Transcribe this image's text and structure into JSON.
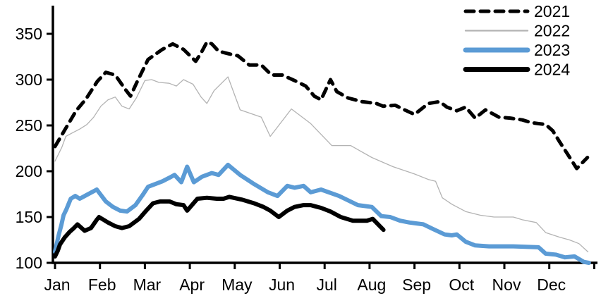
{
  "chart_data": {
    "type": "line",
    "title": "",
    "xlabel": "",
    "ylabel": "",
    "x_axis": {
      "labels": [
        "Jan",
        "Feb",
        "Mar",
        "Apr",
        "May",
        "Jun",
        "Jul",
        "Aug",
        "Sep",
        "Oct",
        "Nov",
        "Dec"
      ],
      "range_months": [
        0,
        12
      ]
    },
    "y_axis": {
      "ticks": [
        "100",
        "150",
        "200",
        "250",
        "300",
        "350"
      ],
      "tick_values": [
        100,
        150,
        200,
        250,
        300,
        350
      ],
      "range": [
        100,
        360
      ],
      "grid": false
    },
    "legend": {
      "position": "top-right",
      "entries": [
        "2021",
        "2022",
        "2023",
        "2024"
      ]
    },
    "colors": {
      "series_2021": "#000000",
      "series_2022": "#b3b3b3",
      "series_2023": "#5B9BD5",
      "series_2024": "#000000"
    },
    "series": [
      {
        "name": "2021",
        "color": "#000000",
        "style": "dashed",
        "width": 5,
        "points": [
          [
            0.0,
            227
          ],
          [
            0.24,
            247
          ],
          [
            0.47,
            266
          ],
          [
            0.69,
            279
          ],
          [
            0.94,
            298
          ],
          [
            1.13,
            308
          ],
          [
            1.34,
            305
          ],
          [
            1.57,
            289
          ],
          [
            1.68,
            282
          ],
          [
            1.84,
            299
          ],
          [
            2.07,
            322
          ],
          [
            2.39,
            333
          ],
          [
            2.62,
            339
          ],
          [
            2.86,
            333
          ],
          [
            3.13,
            320
          ],
          [
            3.25,
            329
          ],
          [
            3.38,
            341
          ],
          [
            3.49,
            339
          ],
          [
            3.64,
            331
          ],
          [
            3.88,
            328
          ],
          [
            4.07,
            326
          ],
          [
            4.32,
            316
          ],
          [
            4.59,
            316
          ],
          [
            4.82,
            305
          ],
          [
            5.06,
            305
          ],
          [
            5.33,
            299
          ],
          [
            5.58,
            293
          ],
          [
            5.77,
            282
          ],
          [
            5.92,
            278
          ],
          [
            6.13,
            300
          ],
          [
            6.27,
            287
          ],
          [
            6.52,
            280
          ],
          [
            6.83,
            276
          ],
          [
            7.15,
            274
          ],
          [
            7.3,
            271
          ],
          [
            7.57,
            272
          ],
          [
            7.78,
            267
          ],
          [
            8.0,
            262
          ],
          [
            8.31,
            274
          ],
          [
            8.56,
            276
          ],
          [
            8.72,
            270
          ],
          [
            8.94,
            266
          ],
          [
            9.14,
            270
          ],
          [
            9.35,
            258
          ],
          [
            9.58,
            267
          ],
          [
            9.88,
            259
          ],
          [
            10.13,
            258
          ],
          [
            10.4,
            256
          ],
          [
            10.6,
            253
          ],
          [
            10.92,
            251
          ],
          [
            11.08,
            244
          ],
          [
            11.23,
            232
          ],
          [
            11.39,
            220
          ],
          [
            11.61,
            203
          ],
          [
            11.85,
            215
          ]
        ]
      },
      {
        "name": "2022",
        "color": "#b3b3b3",
        "style": "solid",
        "width": 1.3,
        "points": [
          [
            0.0,
            211
          ],
          [
            0.15,
            226
          ],
          [
            0.24,
            238
          ],
          [
            0.39,
            242
          ],
          [
            0.55,
            246
          ],
          [
            0.71,
            251
          ],
          [
            0.86,
            259
          ],
          [
            1.02,
            271
          ],
          [
            1.18,
            278
          ],
          [
            1.34,
            281
          ],
          [
            1.49,
            271
          ],
          [
            1.65,
            268
          ],
          [
            1.81,
            280
          ],
          [
            1.92,
            291
          ],
          [
            2.0,
            299
          ],
          [
            2.15,
            300
          ],
          [
            2.31,
            297
          ],
          [
            2.54,
            296
          ],
          [
            2.7,
            293
          ],
          [
            2.86,
            300
          ],
          [
            3.07,
            295
          ],
          [
            3.25,
            281
          ],
          [
            3.38,
            274
          ],
          [
            3.54,
            288
          ],
          [
            3.85,
            303
          ],
          [
            4.12,
            267
          ],
          [
            4.59,
            259
          ],
          [
            4.79,
            238
          ],
          [
            5.26,
            268
          ],
          [
            5.69,
            252
          ],
          [
            6.16,
            228
          ],
          [
            6.58,
            228
          ],
          [
            7.05,
            215
          ],
          [
            7.52,
            205
          ],
          [
            8.0,
            197
          ],
          [
            8.31,
            191
          ],
          [
            8.47,
            189
          ],
          [
            8.62,
            171
          ],
          [
            8.83,
            164
          ],
          [
            9.14,
            156
          ],
          [
            9.46,
            152
          ],
          [
            9.77,
            150
          ],
          [
            10.2,
            150
          ],
          [
            10.4,
            147
          ],
          [
            10.71,
            144
          ],
          [
            10.92,
            133
          ],
          [
            11.23,
            128
          ],
          [
            11.45,
            125
          ],
          [
            11.66,
            121
          ],
          [
            11.86,
            112
          ]
        ]
      },
      {
        "name": "2023",
        "color": "#5B9BD5",
        "style": "solid",
        "width": 6,
        "points": [
          [
            0.0,
            112
          ],
          [
            0.08,
            130
          ],
          [
            0.14,
            141
          ],
          [
            0.19,
            152
          ],
          [
            0.25,
            158
          ],
          [
            0.3,
            164
          ],
          [
            0.35,
            170
          ],
          [
            0.45,
            173
          ],
          [
            0.55,
            170
          ],
          [
            0.7,
            174
          ],
          [
            0.93,
            180
          ],
          [
            1.13,
            167
          ],
          [
            1.29,
            161
          ],
          [
            1.45,
            157
          ],
          [
            1.6,
            156
          ],
          [
            1.79,
            163
          ],
          [
            1.95,
            174
          ],
          [
            2.07,
            183
          ],
          [
            2.23,
            186
          ],
          [
            2.39,
            189
          ],
          [
            2.55,
            193
          ],
          [
            2.66,
            196
          ],
          [
            2.81,
            188
          ],
          [
            2.94,
            205
          ],
          [
            3.09,
            188
          ],
          [
            3.27,
            194
          ],
          [
            3.49,
            198
          ],
          [
            3.64,
            196
          ],
          [
            3.85,
            207
          ],
          [
            4.12,
            196
          ],
          [
            4.43,
            186
          ],
          [
            4.74,
            177
          ],
          [
            4.95,
            173
          ],
          [
            5.17,
            184
          ],
          [
            5.33,
            182
          ],
          [
            5.53,
            184
          ],
          [
            5.69,
            177
          ],
          [
            5.92,
            180
          ],
          [
            6.32,
            173
          ],
          [
            6.74,
            163
          ],
          [
            7.05,
            161
          ],
          [
            7.26,
            151
          ],
          [
            7.46,
            150
          ],
          [
            7.68,
            146
          ],
          [
            7.89,
            144
          ],
          [
            8.2,
            142
          ],
          [
            8.41,
            137
          ],
          [
            8.67,
            131
          ],
          [
            8.83,
            130
          ],
          [
            8.94,
            131
          ],
          [
            9.14,
            123
          ],
          [
            9.35,
            119
          ],
          [
            9.66,
            118
          ],
          [
            10.2,
            118
          ],
          [
            10.76,
            117
          ],
          [
            10.92,
            110
          ],
          [
            11.14,
            109
          ],
          [
            11.35,
            106
          ],
          [
            11.56,
            107
          ],
          [
            11.77,
            101
          ],
          [
            11.88,
            100
          ]
        ]
      },
      {
        "name": "2024",
        "color": "#000000",
        "style": "solid",
        "width": 6,
        "points": [
          [
            0.0,
            107
          ],
          [
            0.06,
            113
          ],
          [
            0.11,
            120
          ],
          [
            0.22,
            128
          ],
          [
            0.33,
            134
          ],
          [
            0.42,
            138
          ],
          [
            0.5,
            142
          ],
          [
            0.66,
            135
          ],
          [
            0.8,
            138
          ],
          [
            0.93,
            147
          ],
          [
            0.98,
            150
          ],
          [
            1.18,
            144
          ],
          [
            1.34,
            140
          ],
          [
            1.49,
            138
          ],
          [
            1.65,
            140
          ],
          [
            1.87,
            148
          ],
          [
            2.03,
            157
          ],
          [
            2.18,
            165
          ],
          [
            2.34,
            167
          ],
          [
            2.55,
            167
          ],
          [
            2.7,
            164
          ],
          [
            2.86,
            163
          ],
          [
            2.94,
            157
          ],
          [
            3.17,
            170
          ],
          [
            3.38,
            171
          ],
          [
            3.6,
            170
          ],
          [
            3.75,
            170
          ],
          [
            3.88,
            172
          ],
          [
            4.16,
            169
          ],
          [
            4.43,
            165
          ],
          [
            4.64,
            161
          ],
          [
            4.79,
            157
          ],
          [
            4.98,
            150
          ],
          [
            5.17,
            157
          ],
          [
            5.33,
            161
          ],
          [
            5.53,
            163
          ],
          [
            5.69,
            163
          ],
          [
            5.84,
            161
          ],
          [
            5.92,
            160
          ],
          [
            6.13,
            156
          ],
          [
            6.36,
            150
          ],
          [
            6.63,
            146
          ],
          [
            6.94,
            146
          ],
          [
            7.07,
            148
          ],
          [
            7.31,
            136
          ]
        ]
      }
    ]
  }
}
